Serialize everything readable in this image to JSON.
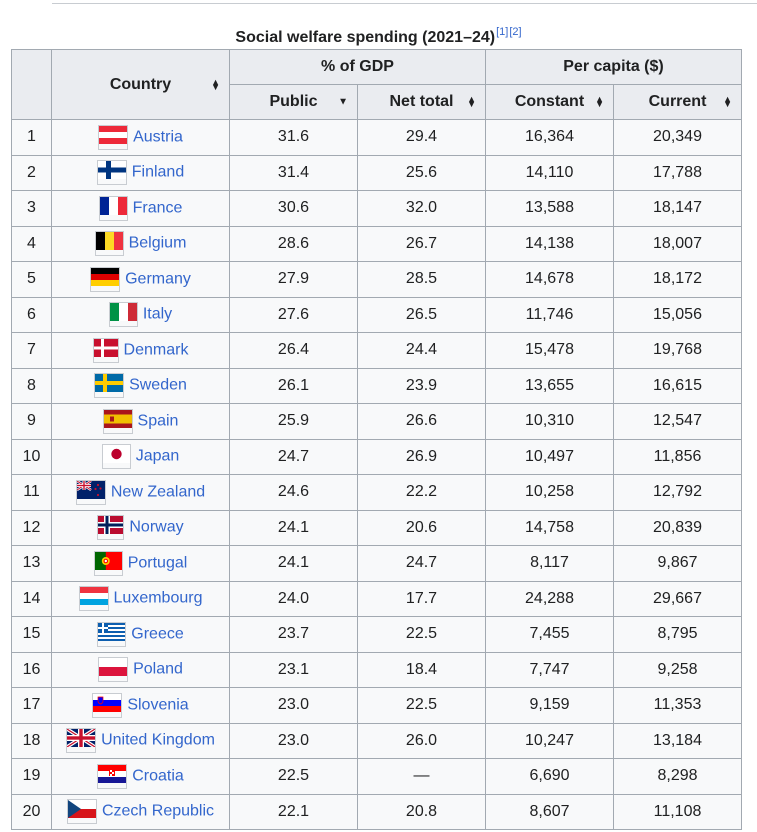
{
  "caption": {
    "title": "Social welfare spending (2021–24)",
    "ref1": "[1]",
    "ref2": "[2]"
  },
  "headers": {
    "country": "Country",
    "gdp_group": "% of GDP",
    "percapita_group": "Per capita ($)",
    "public": "Public",
    "net_total": "Net total",
    "constant": "Constant",
    "current": "Current"
  },
  "rows": [
    {
      "rank": "1",
      "country": "Austria",
      "flag": "austria-flag",
      "public": "31.6",
      "net": "29.4",
      "constant": "16,364",
      "current": "20,349"
    },
    {
      "rank": "2",
      "country": "Finland",
      "flag": "finland-flag",
      "public": "31.4",
      "net": "25.6",
      "constant": "14,110",
      "current": "17,788"
    },
    {
      "rank": "3",
      "country": "France",
      "flag": "france-flag",
      "public": "30.6",
      "net": "32.0",
      "constant": "13,588",
      "current": "18,147"
    },
    {
      "rank": "4",
      "country": "Belgium",
      "flag": "belgium-flag",
      "public": "28.6",
      "net": "26.7",
      "constant": "14,138",
      "current": "18,007"
    },
    {
      "rank": "5",
      "country": "Germany",
      "flag": "germany-flag",
      "public": "27.9",
      "net": "28.5",
      "constant": "14,678",
      "current": "18,172"
    },
    {
      "rank": "6",
      "country": "Italy",
      "flag": "italy-flag",
      "public": "27.6",
      "net": "26.5",
      "constant": "11,746",
      "current": "15,056"
    },
    {
      "rank": "7",
      "country": "Denmark",
      "flag": "denmark-flag",
      "public": "26.4",
      "net": "24.4",
      "constant": "15,478",
      "current": "19,768"
    },
    {
      "rank": "8",
      "country": "Sweden",
      "flag": "sweden-flag",
      "public": "26.1",
      "net": "23.9",
      "constant": "13,655",
      "current": "16,615"
    },
    {
      "rank": "9",
      "country": "Spain",
      "flag": "spain-flag",
      "public": "25.9",
      "net": "26.6",
      "constant": "10,310",
      "current": "12,547"
    },
    {
      "rank": "10",
      "country": "Japan",
      "flag": "japan-flag",
      "public": "24.7",
      "net": "26.9",
      "constant": "10,497",
      "current": "11,856"
    },
    {
      "rank": "11",
      "country": "New Zealand",
      "flag": "new-zealand-flag",
      "public": "24.6",
      "net": "22.2",
      "constant": "10,258",
      "current": "12,792"
    },
    {
      "rank": "12",
      "country": "Norway",
      "flag": "norway-flag",
      "public": "24.1",
      "net": "20.6",
      "constant": "14,758",
      "current": "20,839"
    },
    {
      "rank": "13",
      "country": "Portugal",
      "flag": "portugal-flag",
      "public": "24.1",
      "net": "24.7",
      "constant": "8,117",
      "current": "9,867"
    },
    {
      "rank": "14",
      "country": "Luxembourg",
      "flag": "luxembourg-flag",
      "public": "24.0",
      "net": "17.7",
      "constant": "24,288",
      "current": "29,667"
    },
    {
      "rank": "15",
      "country": "Greece",
      "flag": "greece-flag",
      "public": "23.7",
      "net": "22.5",
      "constant": "7,455",
      "current": "8,795"
    },
    {
      "rank": "16",
      "country": "Poland",
      "flag": "poland-flag",
      "public": "23.1",
      "net": "18.4",
      "constant": "7,747",
      "current": "9,258"
    },
    {
      "rank": "17",
      "country": "Slovenia",
      "flag": "slovenia-flag",
      "public": "23.0",
      "net": "22.5",
      "constant": "9,159",
      "current": "11,353"
    },
    {
      "rank": "18",
      "country": "United Kingdom",
      "flag": "united-kingdom-flag",
      "public": "23.0",
      "net": "26.0",
      "constant": "10,247",
      "current": "13,184"
    },
    {
      "rank": "19",
      "country": "Croatia",
      "flag": "croatia-flag",
      "public": "22.5",
      "net": "—",
      "constant": "6,690",
      "current": "8,298"
    },
    {
      "rank": "20",
      "country": "Czech Republic",
      "flag": "czech-republic-flag",
      "public": "22.1",
      "net": "20.8",
      "constant": "8,607",
      "current": "11,108"
    }
  ],
  "colors": {
    "link": "#3366cc",
    "header_bg": "#eaecf0",
    "cell_bg": "#f8f9fa",
    "border": "#a2a9b1"
  }
}
